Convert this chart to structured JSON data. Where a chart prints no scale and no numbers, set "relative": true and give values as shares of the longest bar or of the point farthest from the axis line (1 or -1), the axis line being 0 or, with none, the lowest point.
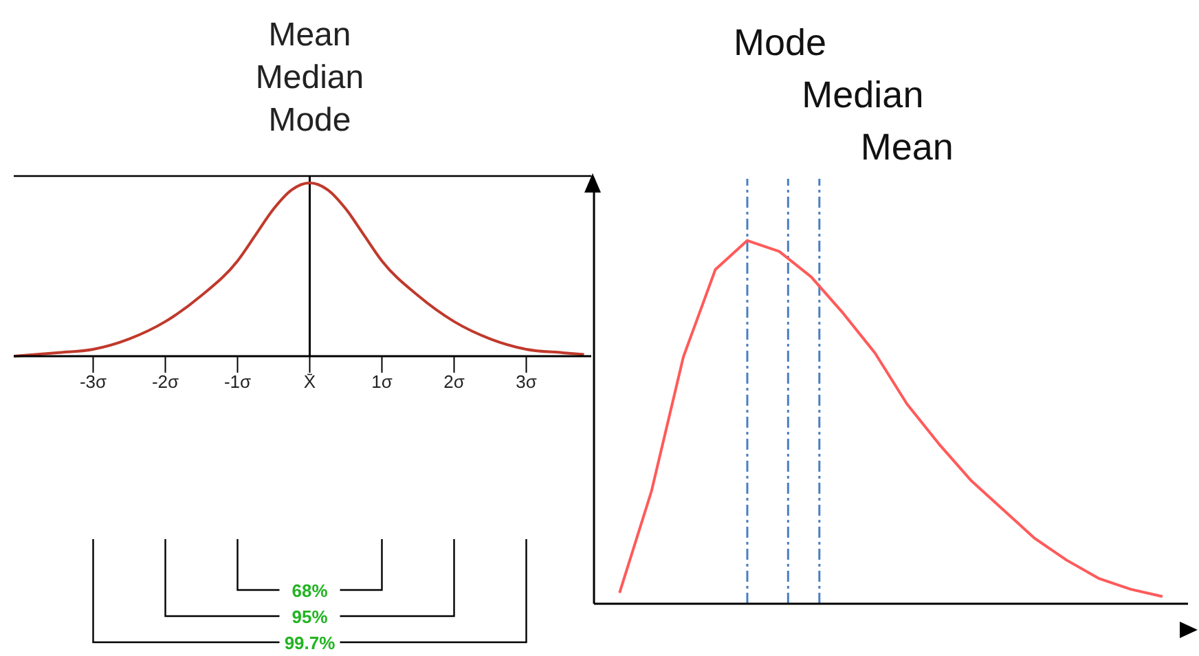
{
  "chart_data": [
    {
      "type": "line",
      "relative": true,
      "xlim": [
        -4.1,
        3.9
      ],
      "xticks": [
        {
          "value": -3,
          "label": "-3σ"
        },
        {
          "value": -2,
          "label": "-2σ"
        },
        {
          "value": -1,
          "label": "-1σ"
        },
        {
          "value": 0,
          "label": "X̄"
        },
        {
          "value": 1,
          "label": "1σ"
        },
        {
          "value": 2,
          "label": "2σ"
        },
        {
          "value": 3,
          "label": "3σ"
        }
      ],
      "series": [
        {
          "color": "#c0392b",
          "x": [
            -4.1,
            -3.5,
            -3,
            -2.5,
            -2,
            -1.5,
            -1,
            -0.75,
            -0.5,
            -0.25,
            0,
            0.25,
            0.5,
            0.75,
            1,
            1.5,
            2,
            2.5,
            3,
            3.5,
            3.8
          ],
          "values": [
            0,
            0.02,
            0.04,
            0.1,
            0.2,
            0.35,
            0.55,
            0.7,
            0.85,
            0.96,
            1,
            0.96,
            0.85,
            0.7,
            0.55,
            0.35,
            0.2,
            0.1,
            0.04,
            0.02,
            0.01
          ]
        }
      ],
      "ref_lines": [
        {
          "axis": "x",
          "value": 0,
          "label": "Mean Median Mode",
          "color": "#000000"
        }
      ],
      "annotations": [
        "68%",
        "95%",
        "99.7%"
      ]
    },
    {
      "type": "line",
      "relative": true,
      "categories": [
        null,
        null,
        null,
        null,
        null,
        null,
        null,
        null,
        null,
        null,
        null,
        null,
        null,
        null,
        null,
        null,
        null,
        null
      ],
      "series": [
        {
          "color": "#ff5a5a",
          "values": [
            0.03,
            0.31,
            0.68,
            0.92,
            1,
            0.97,
            0.9,
            0.8,
            0.69,
            0.55,
            0.44,
            0.34,
            0.26,
            0.18,
            0.12,
            0.07,
            0.04,
            0.02
          ]
        }
      ],
      "annotations": [
        "Mode",
        "Median",
        "Mean"
      ]
    }
  ]
}
